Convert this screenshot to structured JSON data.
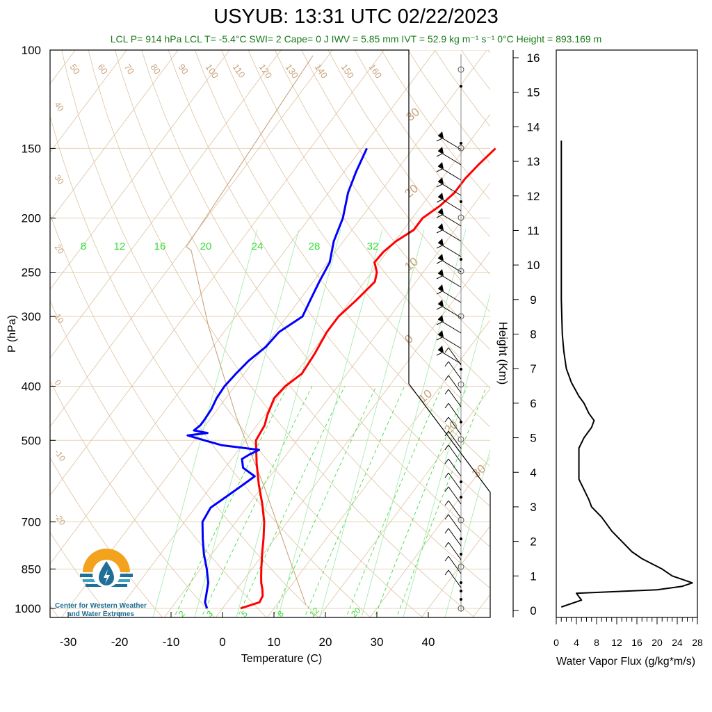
{
  "title": "USYUB: 13:31 UTC 02/22/2023",
  "subtitle": "LCL P= 914 hPa  LCL T= -5.4°C  SWI= 2  Cape= 0 J  IWV = 5.85 mm  IVT = 52.9 kg m⁻¹ s⁻¹  0°C Height = 893.169 m",
  "logo": {
    "line1": "Center for Western Weather",
    "line2": "and Water Extremes"
  },
  "chart_data": [
    {
      "type": "line",
      "name": "skew-t",
      "xlabel": "Temperature (C)",
      "ylabel": "P (hPa)",
      "x_ticks": [
        "-30",
        "-20",
        "-10",
        "0",
        "10",
        "20",
        "30",
        "40"
      ],
      "p_ticks": [
        "100",
        "150",
        "200",
        "250",
        "300",
        "400",
        "500",
        "700",
        "850",
        "1000"
      ],
      "y_scale": "log",
      "mixing_ratio_labels": [
        "8",
        "12",
        "16",
        "20",
        "24",
        "28",
        "32"
      ],
      "mixing_ratio_bottom_labels": [
        "2",
        "3",
        "5",
        "8",
        "12",
        "20"
      ],
      "dry_adiabat_labels": [
        "50",
        "60",
        "70",
        "80",
        "90",
        "100",
        "110",
        "120",
        "130",
        "140",
        "150",
        "160"
      ],
      "isotherm_labels": [
        "40",
        "30",
        "20",
        "10",
        "0",
        "-10",
        "-20"
      ],
      "right_isotherm_labels": [
        "30",
        "20",
        "10",
        "0",
        "10",
        "20",
        "30"
      ],
      "colors": {
        "temperature": "#ff0000",
        "dewpoint": "#0000ff",
        "theta": "#d2b48c",
        "mixing": "#33dd33"
      },
      "series": [
        {
          "name": "Temperature",
          "p": [
            1000,
            975,
            950,
            925,
            900,
            875,
            850,
            800,
            750,
            700,
            650,
            600,
            550,
            500,
            470,
            450,
            420,
            400,
            380,
            350,
            320,
            300,
            280,
            260,
            250,
            240,
            230,
            220,
            210,
            200,
            190,
            180,
            170,
            160,
            150
          ],
          "t": [
            3.5,
            6.3,
            6.0,
            5.0,
            3.8,
            2.8,
            1.8,
            -0.2,
            -2.2,
            -4.5,
            -7.5,
            -11.0,
            -14.5,
            -18.0,
            -18.5,
            -19.5,
            -20.6,
            -20.2,
            -18.8,
            -19.2,
            -20.0,
            -20.0,
            -18.9,
            -18.0,
            -19.0,
            -20.9,
            -20.7,
            -19.8,
            -18.0,
            -18.0,
            -16.4,
            -15.5,
            -15.5,
            -14.9,
            -14.0
          ]
        },
        {
          "name": "Dewpoint",
          "p": [
            1000,
            975,
            950,
            900,
            850,
            800,
            750,
            700,
            660,
            630,
            600,
            580,
            560,
            540,
            530,
            520,
            510,
            500,
            490,
            485,
            480,
            470,
            460,
            440,
            420,
            400,
            380,
            360,
            340,
            320,
            300,
            280,
            260,
            240,
            220,
            200,
            180,
            165,
            150
          ],
          "t": [
            -3.0,
            -4.3,
            -5.0,
            -6.5,
            -8.8,
            -11.5,
            -14.0,
            -16.5,
            -17.0,
            -15.5,
            -14.0,
            -13.0,
            -16.5,
            -18.0,
            -17.2,
            -16.0,
            -24.0,
            -28.0,
            -32.0,
            -28.5,
            -31.5,
            -31.0,
            -31.0,
            -31.2,
            -31.8,
            -32.0,
            -31.6,
            -31.0,
            -29.7,
            -29.3,
            -27.0,
            -27.9,
            -28.8,
            -29.6,
            -31.9,
            -33.5,
            -36.2,
            -37.7,
            -39.0
          ]
        }
      ]
    },
    {
      "type": "line",
      "name": "water-vapor-flux",
      "xlabel": "Water Vapor Flux (g/kg*m/s)",
      "ylabel": "Height (Km)",
      "xlim": [
        0,
        28
      ],
      "ylim": [
        0,
        16
      ],
      "x_ticks": [
        "0",
        "4",
        "8",
        "12",
        "16",
        "20",
        "24",
        "28"
      ],
      "y_ticks": [
        "0",
        "1",
        "2",
        "3",
        "4",
        "5",
        "6",
        "7",
        "8",
        "9",
        "10",
        "11",
        "12",
        "13",
        "14",
        "15",
        "16"
      ],
      "series": [
        {
          "name": "Water Vapor Flux",
          "x": [
            1,
            5,
            4,
            20,
            25,
            27,
            23,
            21,
            17,
            15,
            13,
            11,
            9,
            7,
            6.5,
            5.5,
            4.5,
            4.5,
            4.5,
            5.5,
            7,
            7.5,
            6.5,
            5.5,
            4.5,
            3,
            2,
            1.5,
            1.2,
            1.0,
            1.0,
            1.0,
            1.0,
            1.0,
            1.0
          ],
          "y": [
            0.1,
            0.3,
            0.5,
            0.6,
            0.7,
            0.8,
            1.0,
            1.2,
            1.5,
            1.7,
            2.0,
            2.3,
            2.7,
            3.0,
            3.2,
            3.5,
            3.8,
            4.2,
            4.7,
            5.0,
            5.3,
            5.5,
            5.7,
            6.0,
            6.2,
            6.6,
            7.0,
            7.5,
            8.0,
            9.0,
            10.0,
            11.0,
            12.0,
            13.0,
            13.6
          ]
        }
      ]
    }
  ]
}
